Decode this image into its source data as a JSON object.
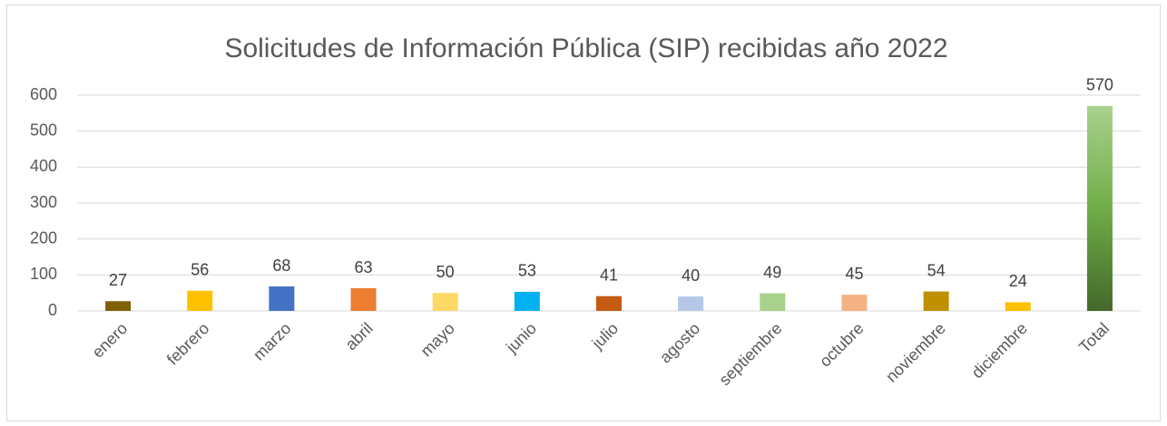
{
  "chart_data": {
    "type": "bar",
    "title": "Solicitudes de Información Pública (SIP) recibidas año 2022",
    "categories": [
      "enero",
      "febrero",
      "marzo",
      "abril",
      "mayo",
      "junio",
      "julio",
      "agosto",
      "septiembre",
      "octubre",
      "noviembre",
      "diciembre",
      "Total"
    ],
    "values": [
      27,
      56,
      68,
      63,
      50,
      53,
      41,
      40,
      49,
      45,
      54,
      24,
      570
    ],
    "colors": [
      "#7f6000",
      "#ffc000",
      "#4472c4",
      "#ed7d31",
      "#ffd966",
      "#00b0f0",
      "#c55a11",
      "#b4c7e7",
      "#a9d18e",
      "#f4b183",
      "#bf9000",
      "#ffc000",
      [
        "#a9d18e",
        "#70ad47",
        "#43682b"
      ]
    ],
    "ylim": [
      0,
      600
    ],
    "yticks": [
      0,
      100,
      200,
      300,
      400,
      500,
      600
    ],
    "grid": true
  }
}
